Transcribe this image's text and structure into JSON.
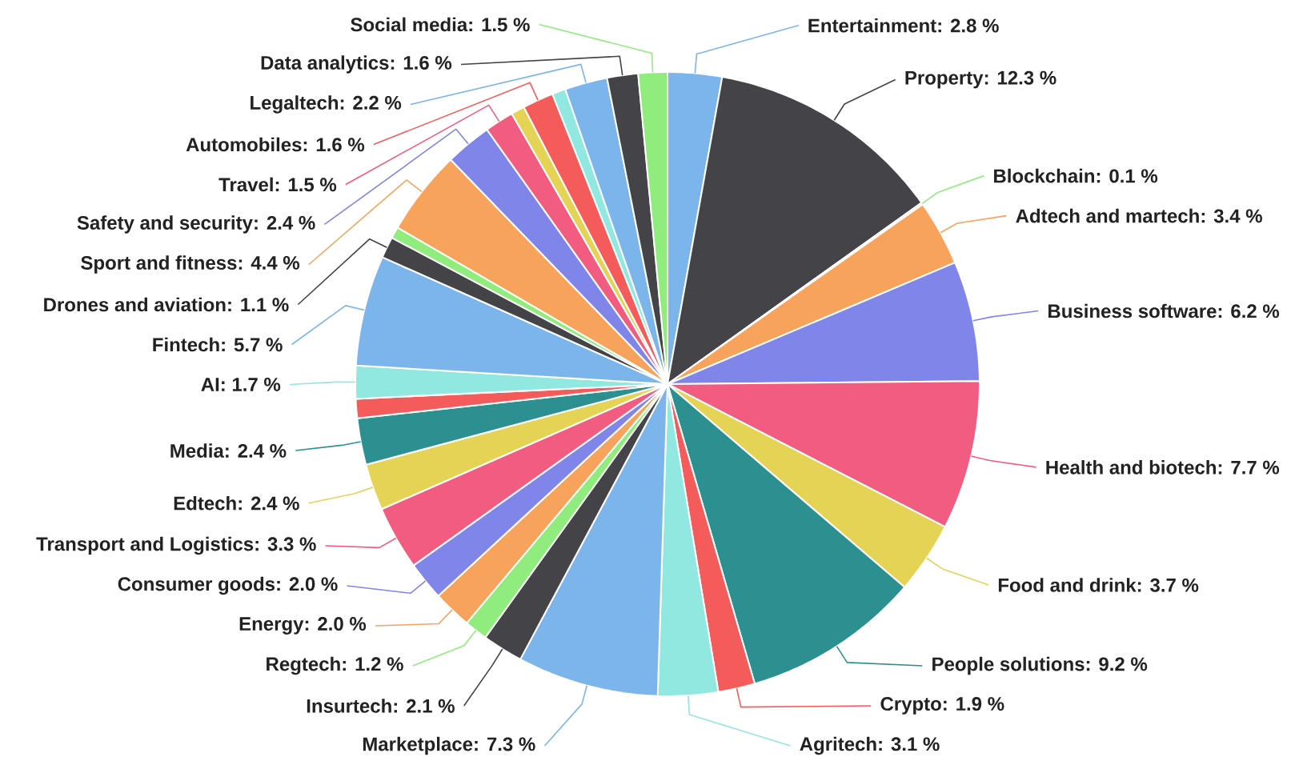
{
  "chart_data": {
    "type": "pie",
    "categories": [
      "Entertainment",
      "Property",
      "Blockchain",
      "Adtech and martech",
      "Business software",
      "Health and biotech",
      "Food and drink",
      "People solutions",
      "Crypto",
      "Agritech",
      "Marketplace",
      "Insurtech",
      "Regtech",
      "Energy",
      "Consumer goods",
      "Transport and Logistics",
      "Edtech",
      "Media",
      null,
      "AI",
      "Fintech",
      "Drones and aviation",
      null,
      "Sport and fitness",
      "Safety and security",
      "Travel",
      null,
      "Automobiles",
      null,
      "Legaltech",
      "Data analytics",
      "Social media"
    ],
    "values": [
      2.8,
      12.3,
      0.1,
      3.4,
      6.2,
      7.7,
      3.7,
      9.2,
      1.9,
      3.1,
      7.3,
      2.1,
      1.2,
      2.0,
      2.0,
      3.3,
      2.4,
      2.4,
      1.0,
      1.7,
      5.7,
      1.1,
      0.6,
      4.4,
      2.4,
      1.5,
      0.7,
      1.6,
      0.7,
      2.2,
      1.6,
      1.5
    ],
    "value_labels": [
      ": 2.8 %",
      ": 12.3 %",
      ": 0.1 %",
      ": 3.4 %",
      ": 6.2 %",
      ": 7.7 %",
      ": 3.7 %",
      ": 9.2 %",
      ": 1.9 %",
      ": 3.1 %",
      ": 7.3 %",
      ": 2.1 %",
      ": 1.2 %",
      ": 2.0 %",
      ": 2.0 %",
      ": 3.3 %",
      ": 2.4 %",
      ": 2.4 %",
      null,
      ": 1.7 %",
      ": 5.7 %",
      ": 1.1 %",
      null,
      ": 4.4 %",
      ": 2.4 %",
      ": 1.5 %",
      null,
      ": 1.6 %",
      null,
      ": 2.2 %",
      ": 1.6 %",
      ": 1.5 %"
    ],
    "colors": [
      "#7cb5ec",
      "#434348",
      "#90ed7d",
      "#f7a35c",
      "#8085e9",
      "#f15c80",
      "#e4d354",
      "#2b908f",
      "#f45b5b",
      "#91e8e1",
      "#7cb5ec",
      "#434348",
      "#90ed7d",
      "#f7a35c",
      "#8085e9",
      "#f15c80",
      "#e4d354",
      "#2b908f",
      "#f45b5b",
      "#91e8e1",
      "#7cb5ec",
      "#434348",
      "#90ed7d",
      "#f7a35c",
      "#8085e9",
      "#f15c80",
      "#e4d354",
      "#f45b5b",
      "#91e8e1",
      "#7cb5ec",
      "#434348",
      "#90ed7d"
    ]
  }
}
